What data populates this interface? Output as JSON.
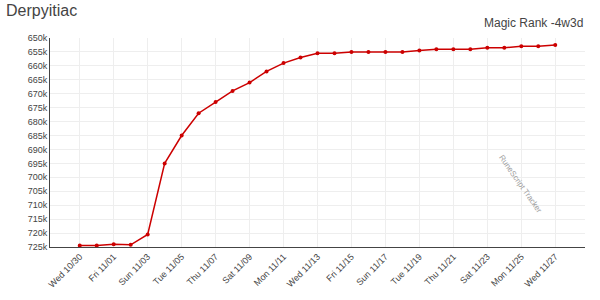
{
  "chart_data": {
    "type": "line",
    "title": "Derpyitiac",
    "subtitle": "Magic Rank -4w3d",
    "categories": [
      "Wed 10/30",
      null,
      "Fri 11/01",
      null,
      "Sun 11/03",
      null,
      "Tue 11/05",
      null,
      "Thu 11/07",
      null,
      "Sat 11/09",
      null,
      "Mon 11/11",
      null,
      "Wed 11/13",
      null,
      "Fri 11/15",
      null,
      "Sun 11/17",
      null,
      "Tue 11/19",
      null,
      "Thu 11/21",
      null,
      "Sat 11/23",
      null,
      "Mon 11/25",
      null,
      "Wed 11/27"
    ],
    "values": [
      724500,
      724500,
      724000,
      724200,
      720500,
      695000,
      685000,
      677000,
      673000,
      669000,
      666000,
      662000,
      659000,
      657000,
      655500,
      655500,
      655000,
      655000,
      655000,
      655000,
      654500,
      654000,
      654000,
      654000,
      653500,
      653500,
      653000,
      653000,
      652500
    ],
    "color": "#cc0000",
    "marker": "circle",
    "ylim": [
      725000,
      650000
    ],
    "yticks": [
      {
        "value": 650000,
        "label": "650k"
      },
      {
        "value": 655000,
        "label": "655k"
      },
      {
        "value": 660000,
        "label": "660k"
      },
      {
        "value": 665000,
        "label": "665k"
      },
      {
        "value": 670000,
        "label": "670k"
      },
      {
        "value": 675000,
        "label": "675k"
      },
      {
        "value": 680000,
        "label": "680k"
      },
      {
        "value": 685000,
        "label": "685k"
      },
      {
        "value": 690000,
        "label": "690k"
      },
      {
        "value": 695000,
        "label": "695k"
      },
      {
        "value": 700000,
        "label": "700k"
      },
      {
        "value": 705000,
        "label": "705k"
      },
      {
        "value": 710000,
        "label": "710k"
      },
      {
        "value": 715000,
        "label": "715k"
      },
      {
        "value": 720000,
        "label": "720k"
      },
      {
        "value": 725000,
        "label": "725k"
      }
    ],
    "grid": true,
    "annotations": [
      "RuneScript Tracker"
    ]
  }
}
